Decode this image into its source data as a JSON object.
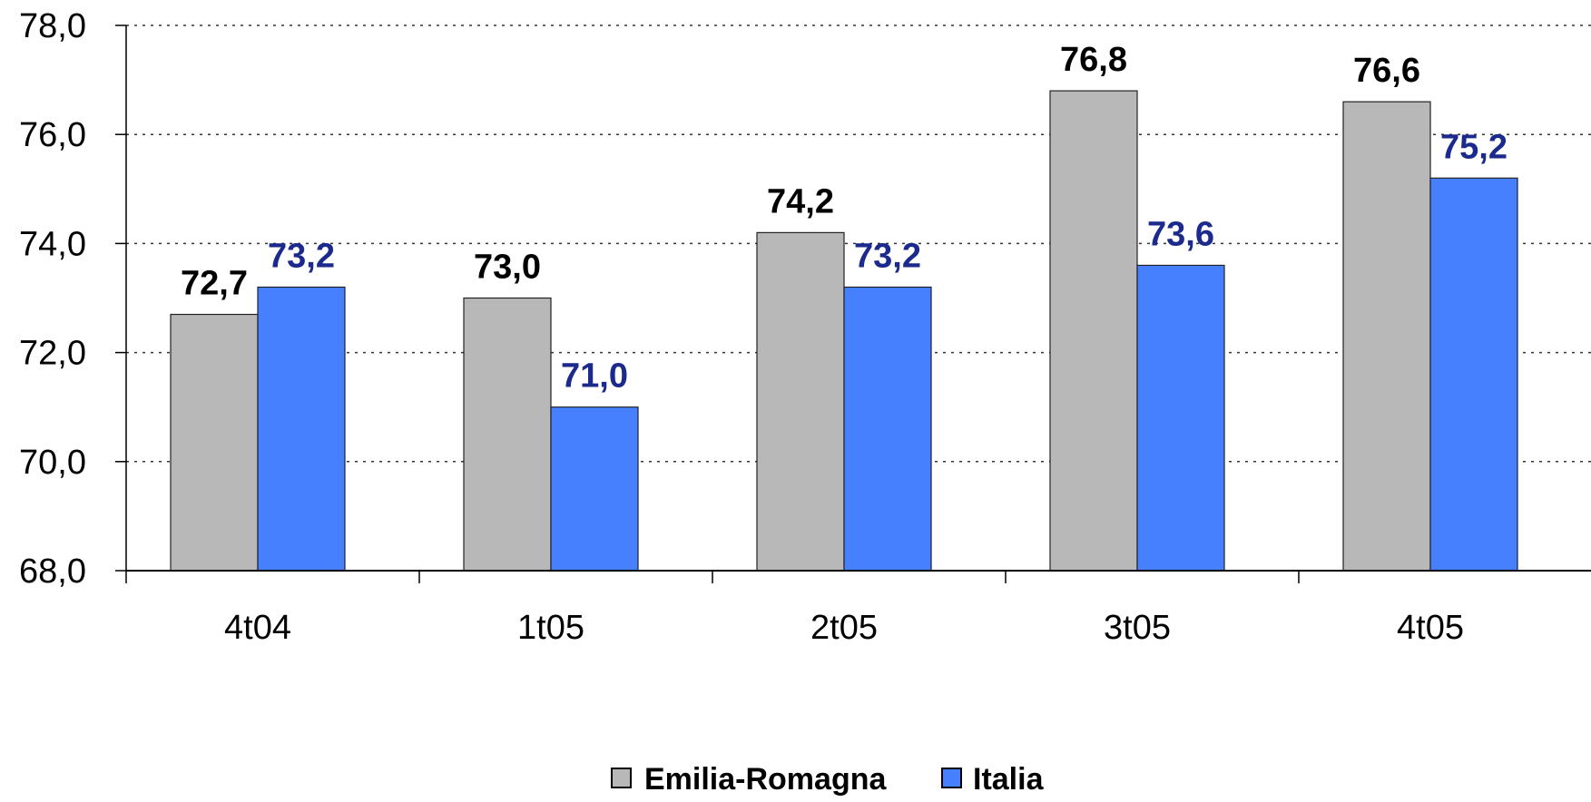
{
  "chart_data": {
    "type": "bar",
    "categories": [
      "4t04",
      "1t05",
      "2t05",
      "3t05",
      "4t05"
    ],
    "series": [
      {
        "name": "Emilia-Romagna",
        "values": [
          72.7,
          73.0,
          74.2,
          76.8,
          76.6
        ],
        "labels": [
          "72,7",
          "73,0",
          "74,2",
          "76,8",
          "76,6"
        ],
        "color": "#b8b8b8",
        "label_color": "#000000"
      },
      {
        "name": "Italia",
        "values": [
          73.2,
          71.0,
          73.2,
          73.6,
          75.2
        ],
        "labels": [
          "73,2",
          "71,0",
          "73,2",
          "73,6",
          "75,2"
        ],
        "color": "#4680ff",
        "label_color": "#1b2a8c"
      }
    ],
    "ylim": [
      68,
      78
    ],
    "yticks": [
      68,
      70,
      72,
      74,
      76,
      78
    ],
    "ytick_labels": [
      "68,0",
      "70,0",
      "72,0",
      "74,0",
      "76,0",
      "78,0"
    ],
    "grid": "horizontal dotted",
    "legend": "bottom-center",
    "title": "",
    "xlabel": "",
    "ylabel": ""
  }
}
